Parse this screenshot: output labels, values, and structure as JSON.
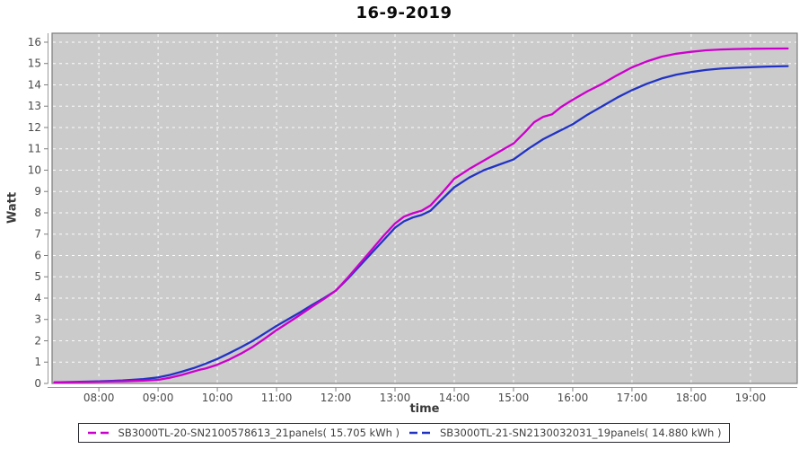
{
  "title": "16-9-2019",
  "chart_data": {
    "type": "line",
    "title": "16-9-2019",
    "xlabel": "time",
    "ylabel": "Watt",
    "x_unit": "hour-of-day",
    "xlim": [
      7.21,
      19.79
    ],
    "ylim": [
      0,
      16.42
    ],
    "grid": true,
    "grid_style": "white-dashed",
    "legend_position": "bottom",
    "plot_background": "#cbcbcb",
    "grid_color": "#ffffff",
    "axis_color": "#9a9a9a",
    "tick_color": "#7d7d7d",
    "tick_label_color": "#4b4b4b",
    "x_ticks": [
      {
        "t": 8,
        "label": "08:00"
      },
      {
        "t": 9,
        "label": "09:00"
      },
      {
        "t": 10,
        "label": "10:00"
      },
      {
        "t": 11,
        "label": "11:00"
      },
      {
        "t": 12,
        "label": "12:00"
      },
      {
        "t": 13,
        "label": "13:00"
      },
      {
        "t": 14,
        "label": "14:00"
      },
      {
        "t": 15,
        "label": "15:00"
      },
      {
        "t": 16,
        "label": "16:00"
      },
      {
        "t": 17,
        "label": "17:00"
      },
      {
        "t": 18,
        "label": "18:00"
      },
      {
        "t": 19,
        "label": "19:00"
      }
    ],
    "y_ticks": [
      {
        "v": 0,
        "label": "0"
      },
      {
        "v": 1,
        "label": "1"
      },
      {
        "v": 2,
        "label": "2"
      },
      {
        "v": 3,
        "label": "3"
      },
      {
        "v": 4,
        "label": "4"
      },
      {
        "v": 5,
        "label": "5"
      },
      {
        "v": 6,
        "label": "6"
      },
      {
        "v": 7,
        "label": "7"
      },
      {
        "v": 8,
        "label": "8"
      },
      {
        "v": 9,
        "label": "9"
      },
      {
        "v": 10,
        "label": "10"
      },
      {
        "v": 11,
        "label": "11"
      },
      {
        "v": 12,
        "label": "12"
      },
      {
        "v": 13,
        "label": "13"
      },
      {
        "v": 14,
        "label": "14"
      },
      {
        "v": 15,
        "label": "15"
      },
      {
        "v": 16,
        "label": "16"
      }
    ],
    "series": [
      {
        "name": "SB3000TL-20-SN2100578613_21panels( 15.705 kWh )",
        "color": "#cc00cc",
        "final_value_kwh": 15.705,
        "points": [
          [
            7.25,
            0.05
          ],
          [
            7.6,
            0.06
          ],
          [
            8.0,
            0.08
          ],
          [
            8.4,
            0.1
          ],
          [
            8.75,
            0.13
          ],
          [
            9.0,
            0.17
          ],
          [
            9.2,
            0.27
          ],
          [
            9.4,
            0.4
          ],
          [
            9.55,
            0.52
          ],
          [
            9.7,
            0.64
          ],
          [
            9.8,
            0.7
          ],
          [
            10.0,
            0.88
          ],
          [
            10.2,
            1.12
          ],
          [
            10.4,
            1.4
          ],
          [
            10.6,
            1.72
          ],
          [
            10.8,
            2.1
          ],
          [
            11.0,
            2.5
          ],
          [
            11.2,
            2.86
          ],
          [
            11.4,
            3.22
          ],
          [
            11.6,
            3.6
          ],
          [
            11.8,
            3.96
          ],
          [
            12.0,
            4.35
          ],
          [
            12.2,
            4.95
          ],
          [
            12.4,
            5.6
          ],
          [
            12.6,
            6.25
          ],
          [
            12.8,
            6.9
          ],
          [
            13.0,
            7.5
          ],
          [
            13.15,
            7.82
          ],
          [
            13.3,
            7.98
          ],
          [
            13.45,
            8.1
          ],
          [
            13.6,
            8.35
          ],
          [
            13.8,
            8.95
          ],
          [
            14.0,
            9.6
          ],
          [
            14.25,
            10.05
          ],
          [
            14.5,
            10.45
          ],
          [
            14.75,
            10.85
          ],
          [
            15.0,
            11.25
          ],
          [
            15.2,
            11.8
          ],
          [
            15.35,
            12.25
          ],
          [
            15.5,
            12.5
          ],
          [
            15.65,
            12.62
          ],
          [
            15.8,
            12.95
          ],
          [
            16.0,
            13.3
          ],
          [
            16.25,
            13.7
          ],
          [
            16.5,
            14.05
          ],
          [
            16.75,
            14.45
          ],
          [
            17.0,
            14.82
          ],
          [
            17.25,
            15.1
          ],
          [
            17.5,
            15.32
          ],
          [
            17.75,
            15.46
          ],
          [
            18.0,
            15.55
          ],
          [
            18.25,
            15.62
          ],
          [
            18.5,
            15.66
          ],
          [
            18.75,
            15.68
          ],
          [
            19.0,
            15.69
          ],
          [
            19.3,
            15.7
          ],
          [
            19.63,
            15.705
          ]
        ]
      },
      {
        "name": "SB3000TL-21-SN2130032031_19panels( 14.880 kWh )",
        "color": "#2233c4",
        "final_value_kwh": 14.88,
        "points": [
          [
            7.25,
            0.05
          ],
          [
            7.6,
            0.07
          ],
          [
            8.0,
            0.1
          ],
          [
            8.4,
            0.14
          ],
          [
            8.75,
            0.2
          ],
          [
            9.0,
            0.28
          ],
          [
            9.2,
            0.4
          ],
          [
            9.4,
            0.55
          ],
          [
            9.6,
            0.72
          ],
          [
            9.8,
            0.92
          ],
          [
            10.0,
            1.15
          ],
          [
            10.2,
            1.42
          ],
          [
            10.4,
            1.7
          ],
          [
            10.6,
            2.0
          ],
          [
            10.8,
            2.35
          ],
          [
            11.0,
            2.7
          ],
          [
            11.2,
            3.02
          ],
          [
            11.4,
            3.34
          ],
          [
            11.6,
            3.68
          ],
          [
            11.8,
            4.0
          ],
          [
            12.0,
            4.35
          ],
          [
            12.2,
            4.9
          ],
          [
            12.4,
            5.5
          ],
          [
            12.6,
            6.1
          ],
          [
            12.8,
            6.7
          ],
          [
            13.0,
            7.3
          ],
          [
            13.15,
            7.6
          ],
          [
            13.3,
            7.78
          ],
          [
            13.45,
            7.9
          ],
          [
            13.6,
            8.1
          ],
          [
            13.8,
            8.65
          ],
          [
            14.0,
            9.2
          ],
          [
            14.25,
            9.65
          ],
          [
            14.5,
            10.0
          ],
          [
            14.75,
            10.25
          ],
          [
            15.0,
            10.5
          ],
          [
            15.25,
            11.0
          ],
          [
            15.5,
            11.45
          ],
          [
            15.75,
            11.8
          ],
          [
            16.0,
            12.15
          ],
          [
            16.25,
            12.6
          ],
          [
            16.5,
            13.0
          ],
          [
            16.75,
            13.4
          ],
          [
            17.0,
            13.75
          ],
          [
            17.25,
            14.05
          ],
          [
            17.5,
            14.3
          ],
          [
            17.75,
            14.48
          ],
          [
            18.0,
            14.6
          ],
          [
            18.25,
            14.7
          ],
          [
            18.5,
            14.76
          ],
          [
            18.75,
            14.8
          ],
          [
            19.0,
            14.83
          ],
          [
            19.3,
            14.86
          ],
          [
            19.63,
            14.88
          ]
        ]
      }
    ]
  }
}
